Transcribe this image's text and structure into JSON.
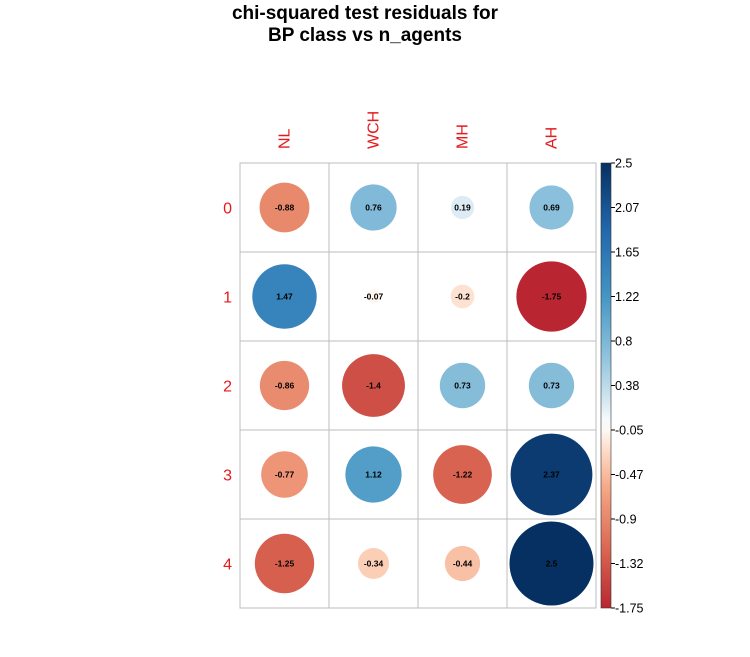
{
  "title_lines": [
    "chi-squared test residuals for",
    "BP class vs n_agents"
  ],
  "chart_data": {
    "type": "heatmap",
    "title": "chi-squared test residuals for BP class vs n_agents",
    "columns": [
      "NL",
      "WCH",
      "MH",
      "AH"
    ],
    "rows": [
      "0",
      "1",
      "2",
      "3",
      "4"
    ],
    "values": [
      [
        -0.88,
        0.76,
        0.19,
        0.69
      ],
      [
        1.47,
        -0.07,
        -0.2,
        -1.75
      ],
      [
        -0.86,
        -1.4,
        0.73,
        0.73
      ],
      [
        -0.77,
        1.12,
        -1.22,
        2.37
      ],
      [
        -1.25,
        -0.34,
        -0.44,
        2.5
      ]
    ],
    "value_labels": [
      [
        "-0.88",
        "0.76",
        "0.19",
        "0.69"
      ],
      [
        "1.47",
        "-0.07",
        "-0.2",
        "-1.75"
      ],
      [
        "-0.86",
        "-1.4",
        "0.73",
        "0.73"
      ],
      [
        "-0.77",
        "1.12",
        "-1.22",
        "2.37"
      ],
      [
        "-1.25",
        "-0.34",
        "-0.44",
        "2.5"
      ]
    ],
    "scale_range": [
      -1.75,
      2.5
    ],
    "colorbar_ticks": [
      "2.5",
      "2.07",
      "1.65",
      "1.22",
      "0.8",
      "0.38",
      "-0.05",
      "-0.47",
      "-0.9",
      "-1.32",
      "-1.75"
    ],
    "legend_placement": "right",
    "grid": true,
    "label_color": "#e41a1c",
    "colors": {
      "negative_end": "#67001f",
      "neutral": "#ffffff",
      "positive_end": "#053061",
      "grid": "#bdbdbd"
    }
  }
}
